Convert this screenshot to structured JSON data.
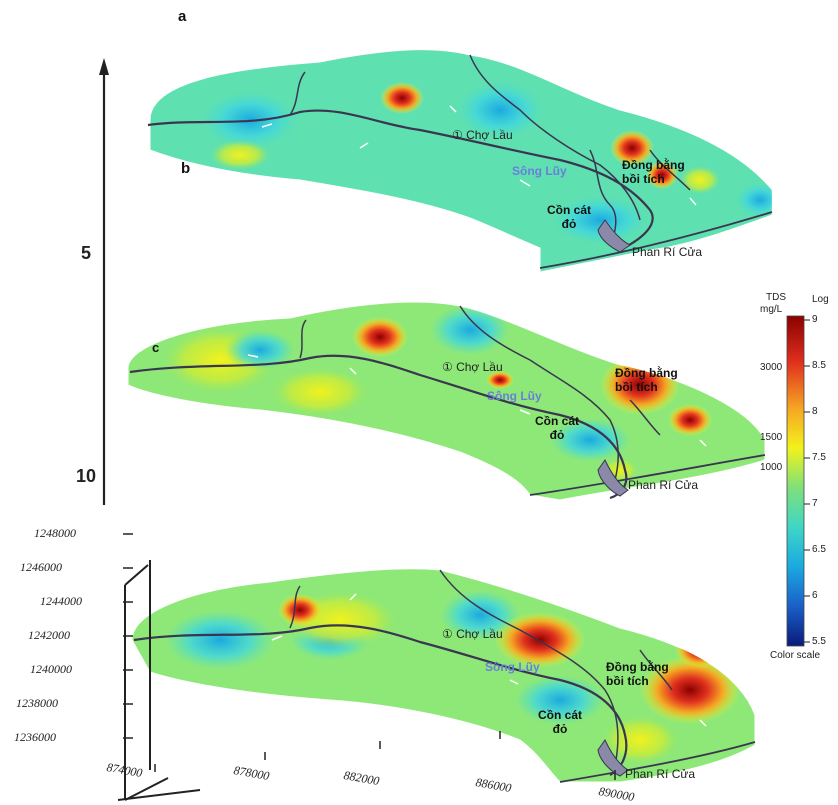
{
  "figure": {
    "panel_labels": [
      "a",
      "b",
      "c"
    ],
    "depth_labels": [
      "5",
      "10"
    ],
    "y_axis_ticks": [
      "1248000",
      "1246000",
      "1244000",
      "1242000",
      "1240000",
      "1238000",
      "1236000"
    ],
    "x_axis_ticks": [
      "874000",
      "878000",
      "882000",
      "886000",
      "890000"
    ],
    "layers": [
      {
        "place_labels": {
          "cho_lau": "Chợ Lầu",
          "song_luy": "Sông Lũy",
          "dong_bang_1": "Đồng bằng",
          "dong_bang_2": "bồi tích",
          "con_cat_1": "Cồn cát",
          "con_cat_2": "đỏ",
          "phan_ri": "Phan Rí Cửa"
        }
      },
      {
        "place_labels": {
          "cho_lau": "Chợ Lầu",
          "song_luy": "Sông Lũy",
          "dong_bang_1": "Đồng bằng",
          "dong_bang_2": "bồi tích",
          "con_cat_1": "Cồn cát",
          "con_cat_2": "đỏ",
          "phan_ri": "Phan Rí Cửa"
        }
      },
      {
        "place_labels": {
          "cho_lau": "Chợ Lầu",
          "song_luy": "Sông Lũy",
          "dong_bang_1": "Đồng bằng",
          "dong_bang_2": "bồi tích",
          "con_cat_1": "Cồn cát",
          "con_cat_2": "đỏ",
          "phan_ri": "Phan Rí Cửa"
        }
      }
    ],
    "color_scale": {
      "left_header_1": "TDS",
      "left_header_2": "mg/L",
      "right_header": "Log",
      "left_ticks": [
        "3000",
        "1500",
        "1000"
      ],
      "right_ticks": [
        "9",
        "8.5",
        "8",
        "7.5",
        "7",
        "6.5",
        "6",
        "5.5"
      ],
      "footer": "Color scale",
      "gradient_colors": [
        "#8b0000",
        "#e0301e",
        "#f5a623",
        "#f2f21c",
        "#7fe07a",
        "#3fd6c6",
        "#1aa9e0",
        "#1a5fc8",
        "#0a1a7a"
      ]
    }
  }
}
